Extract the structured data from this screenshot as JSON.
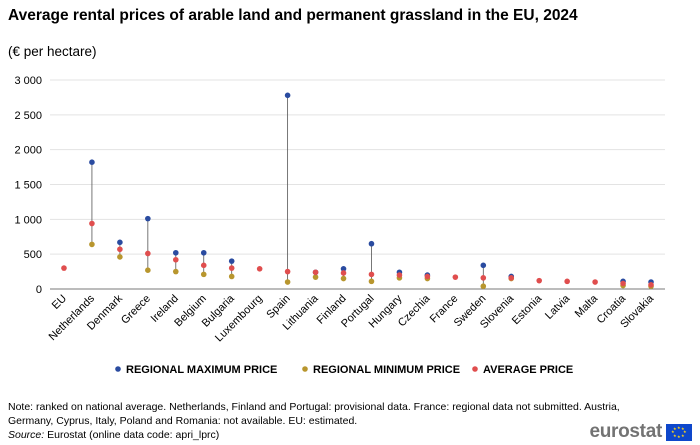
{
  "header": {
    "title": "Average rental prices of arable land and permanent grassland in the EU, 2024",
    "subtitle": "(€ per hectare)"
  },
  "footer": {
    "note": "Note: ranked on national average. Netherlands, Finland and Portugal: provisional data. France: regional data not submitted. Austria, Germany, Cyprus, Italy, Poland and Romania: not available. EU: estimated.",
    "source_prefix": "Source:",
    "source_text": " Eurostat (online data code: apri_lprc)",
    "logo_text": "eurostat"
  },
  "colors": {
    "max": "#2A4BA0",
    "min": "#B8962E",
    "avg": "#E04E4E",
    "grid": "#e3e3e3",
    "axis": "#7a7a7a"
  },
  "chart_data": {
    "type": "scatter",
    "title": "Average rental prices of arable land and permanent grassland in the EU, 2024",
    "subtitle": "(€ per hectare)",
    "categories": [
      "EU",
      "Netherlands",
      "Denmark",
      "Greece",
      "Ireland",
      "Belgium",
      "Bulgaria",
      "Luxembourg",
      "Spain",
      "Lithuania",
      "Finland",
      "Portugal",
      "Hungary",
      "Czechia",
      "France",
      "Sweden",
      "Slovenia",
      "Estonia",
      "Latvia",
      "Malta",
      "Croatia",
      "Slovakia"
    ],
    "series": [
      {
        "name": "REGIONAL MAXIMUM PRICE",
        "color": "#2A4BA0",
        "values": [
          null,
          1820,
          670,
          1010,
          520,
          520,
          400,
          null,
          2780,
          240,
          290,
          650,
          240,
          200,
          null,
          340,
          180,
          null,
          null,
          null,
          110,
          100
        ]
      },
      {
        "name": "REGIONAL MINIMUM PRICE",
        "color": "#B8962E",
        "values": [
          null,
          640,
          460,
          270,
          250,
          210,
          180,
          null,
          100,
          170,
          150,
          110,
          160,
          150,
          null,
          40,
          150,
          null,
          null,
          null,
          50,
          40
        ]
      },
      {
        "name": "AVERAGE PRICE",
        "color": "#E04E4E",
        "values": [
          300,
          940,
          570,
          510,
          420,
          340,
          300,
          290,
          250,
          240,
          230,
          210,
          200,
          180,
          170,
          160,
          160,
          120,
          110,
          100,
          80,
          60
        ]
      }
    ],
    "ylim": [
      0,
      3000
    ],
    "yticks": [
      0,
      500,
      1000,
      1500,
      2000,
      2500,
      3000
    ],
    "ytick_labels": [
      "0",
      "500",
      "1 000",
      "1 500",
      "2 000",
      "2 500",
      "3 000"
    ],
    "grid": true,
    "legend_position": "bottom"
  }
}
